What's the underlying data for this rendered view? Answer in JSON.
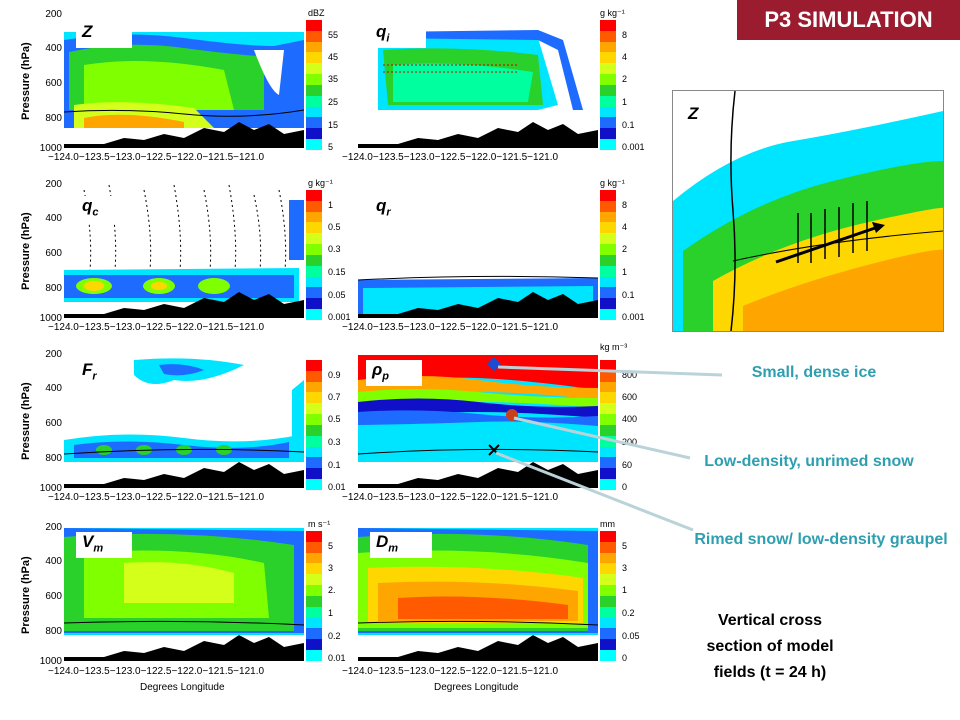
{
  "badge": "P3 SIMULATION",
  "panels": [
    {
      "id": "Z",
      "label": "Z",
      "sub": "",
      "cb_ticks": [
        "55",
        "45",
        "35",
        "25",
        "15",
        "5"
      ],
      "unit": "dBZ"
    },
    {
      "id": "qi",
      "label": "q",
      "sub": "i",
      "cb_ticks": [
        "8",
        "4",
        "2",
        "1",
        "0.1",
        "0.001"
      ],
      "unit": "g kg⁻¹"
    },
    {
      "id": "qc",
      "label": "q",
      "sub": "c",
      "cb_ticks": [
        "1",
        "0.5",
        "0.3",
        "0.15",
        "0.05",
        "0.001"
      ],
      "unit": "g kg⁻¹"
    },
    {
      "id": "qr",
      "label": "q",
      "sub": "r",
      "cb_ticks": [
        "8",
        "4",
        "2",
        "1",
        "0.1",
        "0.001"
      ],
      "unit": "g kg⁻¹"
    },
    {
      "id": "Fr",
      "label": "F",
      "sub": "r",
      "cb_ticks": [
        "0.9",
        "0.7",
        "0.5",
        "0.3",
        "0.1",
        "0.01"
      ],
      "unit": ""
    },
    {
      "id": "rho",
      "label": "ρ",
      "sub": "p",
      "cb_ticks": [
        "800",
        "600",
        "400",
        "200",
        "60",
        "0"
      ],
      "unit": "kg m⁻³"
    },
    {
      "id": "Vm",
      "label": "V",
      "sub": "m",
      "cb_ticks": [
        "5",
        "3",
        "2.",
        "1",
        "0.2",
        "0.01"
      ],
      "unit": "m s⁻¹"
    },
    {
      "id": "Dm",
      "label": "D",
      "sub": "m",
      "cb_ticks": [
        "5",
        "3",
        "1",
        "0.2",
        "0.05",
        "0"
      ],
      "unit": "mm"
    }
  ],
  "y_axis_label": "Pressure (hPa)",
  "y_ticks": [
    "200",
    "400",
    "600",
    "800",
    "1000"
  ],
  "x_ticks": [
    "-124.0",
    "-123.5",
    "-123.0",
    "-122.5",
    "-122.0",
    "-121.5",
    "-121.0"
  ],
  "x_tick_row": "−124.0−123.5−123.0−122.5−122.0−121.5−121.0",
  "x_axis_title": "Degrees Longitude",
  "map_label": "Z",
  "annotations": {
    "dense_ice": "Small, dense ice",
    "low_density": "Low-density, unrimed snow",
    "rimed": "Rimed snow/ low-density graupel"
  },
  "caption": [
    "Vertical cross",
    "section of model",
    "fields (t = 24 h)"
  ],
  "colors": {
    "badge": "#9b1c2e",
    "annotation": "#2e9fb0",
    "colorbar": [
      "#ff0000",
      "#ff5a00",
      "#ffa500",
      "#ffd700",
      "#d4ff1a",
      "#7fff00",
      "#2ad12a",
      "#00ff9f",
      "#00e5ff",
      "#1e6bff",
      "#1010c8",
      "#00ffff"
    ]
  }
}
